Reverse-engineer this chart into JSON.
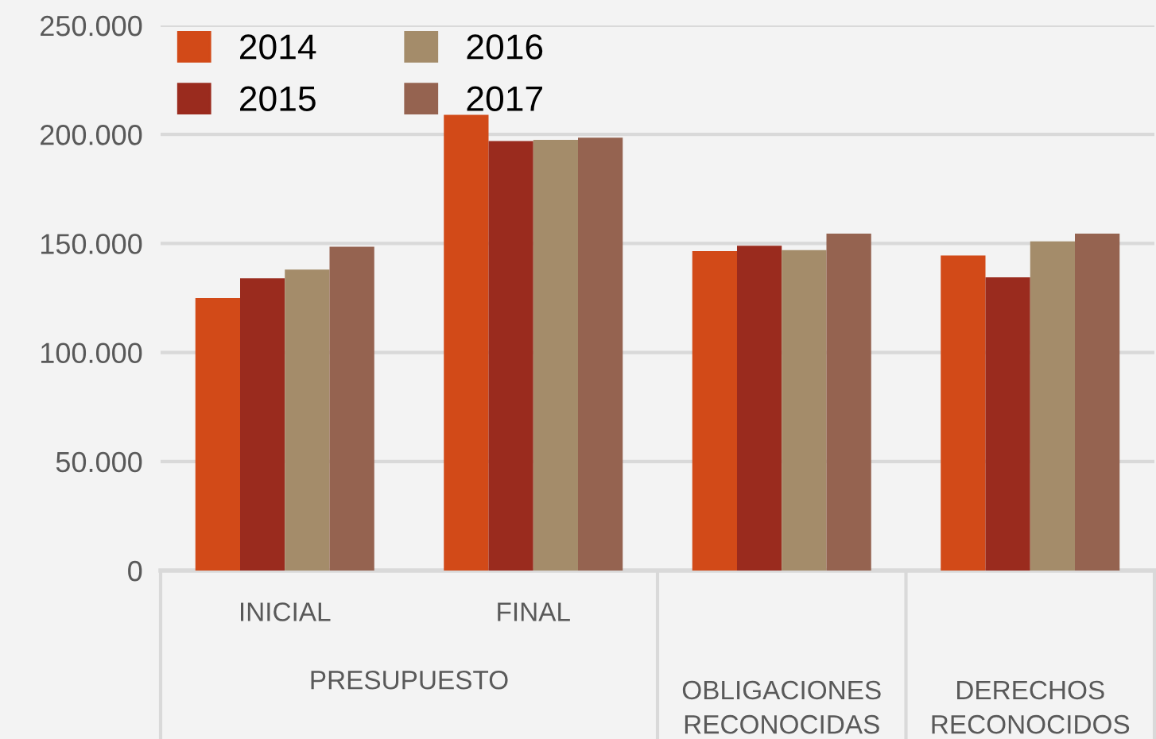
{
  "chart_data": {
    "type": "bar",
    "categories": [
      "INICIAL",
      "FINAL",
      "OBLIGACIONES RECONOCIDAS",
      "DERECHOS RECONOCIDOS"
    ],
    "series": [
      {
        "name": "2014",
        "color": "#d24a18",
        "values": [
          125000,
          209000,
          146500,
          144500
        ]
      },
      {
        "name": "2015",
        "color": "#9a2b1e",
        "values": [
          134000,
          197000,
          149000,
          134500
        ]
      },
      {
        "name": "2016",
        "color": "#a48c6a",
        "values": [
          138000,
          197500,
          147000,
          151000
        ]
      },
      {
        "name": "2017",
        "color": "#956350",
        "values": [
          148500,
          198500,
          154500,
          154500
        ]
      }
    ],
    "annotations": [
      "PRESUPUESTO"
    ],
    "ylim": [
      0,
      250000
    ],
    "yticks": [
      0,
      {
        "value": 50000,
        "label": "50.000"
      },
      {
        "value": 100000,
        "label": "100.000"
      },
      {
        "value": 150000,
        "label": "150.000"
      },
      {
        "value": 200000,
        "label": "200.000"
      },
      {
        "value": 250000,
        "label": "250.000"
      }
    ],
    "grid": "y",
    "legend": "top left"
  }
}
